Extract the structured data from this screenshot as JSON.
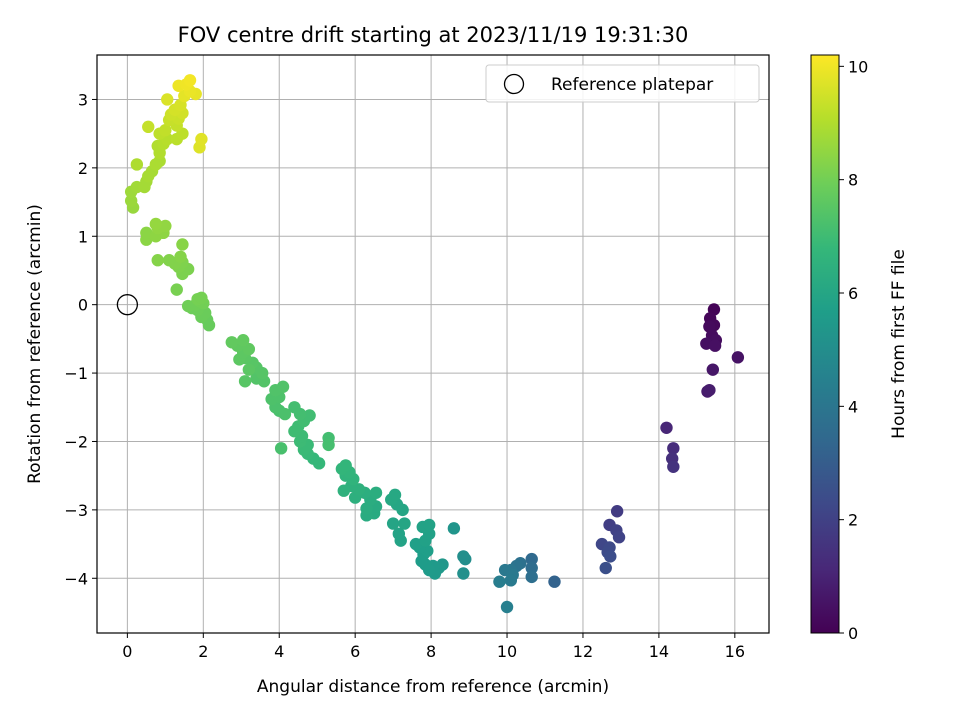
{
  "chart_data": {
    "type": "scatter",
    "title": "FOV centre drift starting at 2023/11/19 19:31:30",
    "xlabel": "Angular distance from reference (arcmin)",
    "ylabel": "Rotation from reference (arcmin)",
    "xlim": [
      -0.8,
      16.9
    ],
    "ylim": [
      -4.8,
      3.65
    ],
    "xticks": [
      0,
      2,
      4,
      6,
      8,
      10,
      12,
      14,
      16
    ],
    "yticks": [
      -4,
      -3,
      -2,
      -1,
      0,
      1,
      2,
      3
    ],
    "grid": true,
    "legend": {
      "position": "top-right",
      "entries": [
        "Reference platepar"
      ]
    },
    "reference_point": {
      "x": 0,
      "y": 0
    },
    "colorbar": {
      "label": "Hours from first FF file",
      "min": 0,
      "max": 10.2,
      "ticks": [
        0,
        2,
        4,
        6,
        8,
        10
      ],
      "colormap": "viridis"
    },
    "colormap_stops": [
      "#440154",
      "#482878",
      "#3e4989",
      "#31688e",
      "#26828e",
      "#1f9e89",
      "#35b779",
      "#6ece58",
      "#b5de2b",
      "#fde725"
    ],
    "points": [
      {
        "x": 15.45,
        "y": -0.07,
        "h": 0.1
      },
      {
        "x": 15.35,
        "y": -0.2,
        "h": 0.15
      },
      {
        "x": 15.45,
        "y": -0.3,
        "h": 0.2
      },
      {
        "x": 15.33,
        "y": -0.32,
        "h": 0.25
      },
      {
        "x": 15.4,
        "y": -0.45,
        "h": 0.3
      },
      {
        "x": 15.5,
        "y": -0.52,
        "h": 0.35
      },
      {
        "x": 15.25,
        "y": -0.57,
        "h": 0.4
      },
      {
        "x": 15.48,
        "y": -0.6,
        "h": 0.45
      },
      {
        "x": 16.08,
        "y": -0.77,
        "h": 0.5
      },
      {
        "x": 15.42,
        "y": -0.95,
        "h": 0.6
      },
      {
        "x": 15.28,
        "y": -1.27,
        "h": 0.75
      },
      {
        "x": 15.33,
        "y": -1.25,
        "h": 0.8
      },
      {
        "x": 14.2,
        "y": -1.8,
        "h": 1.1
      },
      {
        "x": 14.38,
        "y": -2.1,
        "h": 1.3
      },
      {
        "x": 14.35,
        "y": -2.25,
        "h": 1.4
      },
      {
        "x": 14.38,
        "y": -2.37,
        "h": 1.5
      },
      {
        "x": 12.9,
        "y": -3.02,
        "h": 1.8
      },
      {
        "x": 12.7,
        "y": -3.22,
        "h": 1.9
      },
      {
        "x": 12.88,
        "y": -3.3,
        "h": 2.0
      },
      {
        "x": 12.95,
        "y": -3.4,
        "h": 2.05
      },
      {
        "x": 12.5,
        "y": -3.5,
        "h": 2.2
      },
      {
        "x": 12.7,
        "y": -3.55,
        "h": 2.3
      },
      {
        "x": 12.65,
        "y": -3.62,
        "h": 2.35
      },
      {
        "x": 12.72,
        "y": -3.68,
        "h": 2.4
      },
      {
        "x": 12.6,
        "y": -3.85,
        "h": 2.5
      },
      {
        "x": 11.25,
        "y": -4.05,
        "h": 3.2
      },
      {
        "x": 10.65,
        "y": -3.72,
        "h": 3.5
      },
      {
        "x": 10.65,
        "y": -3.85,
        "h": 3.6
      },
      {
        "x": 10.65,
        "y": -3.98,
        "h": 3.7
      },
      {
        "x": 10.35,
        "y": -3.78,
        "h": 3.8
      },
      {
        "x": 10.25,
        "y": -3.82,
        "h": 3.9
      },
      {
        "x": 10.1,
        "y": -3.88,
        "h": 4.0
      },
      {
        "x": 9.95,
        "y": -3.88,
        "h": 4.1
      },
      {
        "x": 10.15,
        "y": -3.95,
        "h": 4.15
      },
      {
        "x": 10.1,
        "y": -4.03,
        "h": 4.2
      },
      {
        "x": 9.8,
        "y": -4.05,
        "h": 4.3
      },
      {
        "x": 10.0,
        "y": -4.42,
        "h": 4.4
      },
      {
        "x": 8.9,
        "y": -3.72,
        "h": 5.0
      },
      {
        "x": 8.85,
        "y": -3.68,
        "h": 5.05
      },
      {
        "x": 8.85,
        "y": -3.93,
        "h": 5.1
      },
      {
        "x": 8.6,
        "y": -3.27,
        "h": 5.3
      },
      {
        "x": 8.3,
        "y": -3.8,
        "h": 5.4
      },
      {
        "x": 8.2,
        "y": -3.85,
        "h": 5.45
      },
      {
        "x": 8.1,
        "y": -3.93,
        "h": 5.5
      },
      {
        "x": 8.05,
        "y": -3.82,
        "h": 5.5
      },
      {
        "x": 7.95,
        "y": -3.88,
        "h": 5.55
      },
      {
        "x": 7.85,
        "y": -3.8,
        "h": 5.6
      },
      {
        "x": 7.75,
        "y": -3.75,
        "h": 5.6
      },
      {
        "x": 7.8,
        "y": -3.65,
        "h": 5.65
      },
      {
        "x": 7.9,
        "y": -3.6,
        "h": 5.7
      },
      {
        "x": 7.7,
        "y": -3.55,
        "h": 5.7
      },
      {
        "x": 7.6,
        "y": -3.5,
        "h": 5.75
      },
      {
        "x": 7.85,
        "y": -3.45,
        "h": 5.8
      },
      {
        "x": 7.95,
        "y": -3.35,
        "h": 5.8
      },
      {
        "x": 7.78,
        "y": -3.25,
        "h": 5.85
      },
      {
        "x": 7.95,
        "y": -3.22,
        "h": 5.85
      },
      {
        "x": 7.2,
        "y": -3.45,
        "h": 5.9
      },
      {
        "x": 7.15,
        "y": -3.35,
        "h": 5.9
      },
      {
        "x": 7.0,
        "y": -3.2,
        "h": 5.95
      },
      {
        "x": 7.3,
        "y": -3.2,
        "h": 6.0
      },
      {
        "x": 7.25,
        "y": -3.0,
        "h": 6.0
      },
      {
        "x": 7.1,
        "y": -2.92,
        "h": 6.05
      },
      {
        "x": 6.95,
        "y": -2.85,
        "h": 6.1
      },
      {
        "x": 7.05,
        "y": -2.78,
        "h": 6.1
      },
      {
        "x": 6.5,
        "y": -3.05,
        "h": 6.2
      },
      {
        "x": 6.55,
        "y": -2.95,
        "h": 6.2
      },
      {
        "x": 6.3,
        "y": -3.08,
        "h": 6.25
      },
      {
        "x": 6.3,
        "y": -2.98,
        "h": 6.3
      },
      {
        "x": 6.4,
        "y": -2.85,
        "h": 6.3
      },
      {
        "x": 6.55,
        "y": -2.75,
        "h": 6.35
      },
      {
        "x": 6.25,
        "y": -2.75,
        "h": 6.4
      },
      {
        "x": 6.0,
        "y": -2.82,
        "h": 6.45
      },
      {
        "x": 6.1,
        "y": -2.7,
        "h": 6.5
      },
      {
        "x": 5.9,
        "y": -2.65,
        "h": 6.5
      },
      {
        "x": 5.7,
        "y": -2.72,
        "h": 6.55
      },
      {
        "x": 5.95,
        "y": -2.55,
        "h": 6.6
      },
      {
        "x": 5.75,
        "y": -2.5,
        "h": 6.6
      },
      {
        "x": 5.85,
        "y": -2.45,
        "h": 6.65
      },
      {
        "x": 5.65,
        "y": -2.4,
        "h": 6.7
      },
      {
        "x": 5.75,
        "y": -2.35,
        "h": 6.7
      },
      {
        "x": 5.05,
        "y": -2.32,
        "h": 6.8
      },
      {
        "x": 4.9,
        "y": -2.25,
        "h": 6.8
      },
      {
        "x": 4.75,
        "y": -2.18,
        "h": 6.85
      },
      {
        "x": 4.65,
        "y": -2.12,
        "h": 6.9
      },
      {
        "x": 4.75,
        "y": -2.05,
        "h": 6.9
      },
      {
        "x": 4.55,
        "y": -2.0,
        "h": 6.95
      },
      {
        "x": 4.6,
        "y": -1.92,
        "h": 6.95
      },
      {
        "x": 4.4,
        "y": -1.85,
        "h": 7.0
      },
      {
        "x": 4.5,
        "y": -1.78,
        "h": 7.0
      },
      {
        "x": 4.65,
        "y": -1.7,
        "h": 7.05
      },
      {
        "x": 4.8,
        "y": -1.62,
        "h": 7.05
      },
      {
        "x": 4.55,
        "y": -1.6,
        "h": 7.1
      },
      {
        "x": 4.4,
        "y": -1.5,
        "h": 7.1
      },
      {
        "x": 5.3,
        "y": -1.95,
        "h": 7.1
      },
      {
        "x": 5.3,
        "y": -2.05,
        "h": 7.15
      },
      {
        "x": 4.05,
        "y": -2.1,
        "h": 7.2
      },
      {
        "x": 4.0,
        "y": -1.55,
        "h": 7.2
      },
      {
        "x": 4.15,
        "y": -1.6,
        "h": 7.25
      },
      {
        "x": 3.9,
        "y": -1.5,
        "h": 7.25
      },
      {
        "x": 3.8,
        "y": -1.38,
        "h": 7.3
      },
      {
        "x": 4.0,
        "y": -1.35,
        "h": 7.3
      },
      {
        "x": 3.9,
        "y": -1.25,
        "h": 7.35
      },
      {
        "x": 4.1,
        "y": -1.2,
        "h": 7.35
      },
      {
        "x": 3.6,
        "y": -1.12,
        "h": 7.4
      },
      {
        "x": 3.4,
        "y": -1.08,
        "h": 7.4
      },
      {
        "x": 3.55,
        "y": -1.0,
        "h": 7.45
      },
      {
        "x": 3.4,
        "y": -0.92,
        "h": 7.45
      },
      {
        "x": 3.3,
        "y": -0.85,
        "h": 7.5
      },
      {
        "x": 3.1,
        "y": -1.12,
        "h": 7.5
      },
      {
        "x": 3.2,
        "y": -0.95,
        "h": 7.55
      },
      {
        "x": 3.1,
        "y": -0.78,
        "h": 7.55
      },
      {
        "x": 2.95,
        "y": -0.8,
        "h": 7.6
      },
      {
        "x": 3.05,
        "y": -0.7,
        "h": 7.6
      },
      {
        "x": 3.2,
        "y": -0.65,
        "h": 7.65
      },
      {
        "x": 2.9,
        "y": -0.6,
        "h": 7.65
      },
      {
        "x": 2.75,
        "y": -0.55,
        "h": 7.7
      },
      {
        "x": 3.05,
        "y": -0.52,
        "h": 7.7
      },
      {
        "x": 2.15,
        "y": -0.3,
        "h": 7.8
      },
      {
        "x": 2.1,
        "y": -0.22,
        "h": 7.8
      },
      {
        "x": 1.95,
        "y": -0.18,
        "h": 7.85
      },
      {
        "x": 2.05,
        "y": -0.12,
        "h": 7.85
      },
      {
        "x": 1.85,
        "y": -0.08,
        "h": 7.9
      },
      {
        "x": 1.7,
        "y": -0.05,
        "h": 7.9
      },
      {
        "x": 1.6,
        "y": -0.02,
        "h": 7.95
      },
      {
        "x": 1.8,
        "y": 0.0,
        "h": 7.95
      },
      {
        "x": 2.0,
        "y": 0.02,
        "h": 8.0
      },
      {
        "x": 1.9,
        "y": 0.05,
        "h": 8.0
      },
      {
        "x": 1.85,
        "y": 0.08,
        "h": 8.05
      },
      {
        "x": 1.95,
        "y": 0.1,
        "h": 8.05
      },
      {
        "x": 1.3,
        "y": 0.22,
        "h": 8.1
      },
      {
        "x": 1.45,
        "y": 0.45,
        "h": 8.15
      },
      {
        "x": 1.6,
        "y": 0.52,
        "h": 8.15
      },
      {
        "x": 1.35,
        "y": 0.55,
        "h": 8.2
      },
      {
        "x": 1.45,
        "y": 0.62,
        "h": 8.2
      },
      {
        "x": 1.25,
        "y": 0.6,
        "h": 8.25
      },
      {
        "x": 1.1,
        "y": 0.65,
        "h": 8.25
      },
      {
        "x": 1.4,
        "y": 0.7,
        "h": 8.3
      },
      {
        "x": 0.8,
        "y": 0.65,
        "h": 8.3
      },
      {
        "x": 1.45,
        "y": 0.88,
        "h": 8.35
      },
      {
        "x": 0.5,
        "y": 0.95,
        "h": 8.4
      },
      {
        "x": 0.5,
        "y": 1.05,
        "h": 8.4
      },
      {
        "x": 0.75,
        "y": 1.0,
        "h": 8.45
      },
      {
        "x": 0.95,
        "y": 1.05,
        "h": 8.45
      },
      {
        "x": 0.8,
        "y": 1.12,
        "h": 8.5
      },
      {
        "x": 1.0,
        "y": 1.15,
        "h": 8.5
      },
      {
        "x": 0.75,
        "y": 1.18,
        "h": 8.55
      },
      {
        "x": 0.15,
        "y": 1.42,
        "h": 8.6
      },
      {
        "x": 0.1,
        "y": 1.52,
        "h": 8.65
      },
      {
        "x": 0.1,
        "y": 1.65,
        "h": 8.7
      },
      {
        "x": 0.25,
        "y": 1.72,
        "h": 8.75
      },
      {
        "x": 0.45,
        "y": 1.72,
        "h": 8.8
      },
      {
        "x": 0.5,
        "y": 1.8,
        "h": 8.8
      },
      {
        "x": 0.55,
        "y": 1.88,
        "h": 8.85
      },
      {
        "x": 0.65,
        "y": 1.95,
        "h": 8.85
      },
      {
        "x": 0.75,
        "y": 2.05,
        "h": 8.9
      },
      {
        "x": 0.85,
        "y": 2.1,
        "h": 8.9
      },
      {
        "x": 0.25,
        "y": 2.05,
        "h": 8.95
      },
      {
        "x": 0.85,
        "y": 2.22,
        "h": 9.0
      },
      {
        "x": 0.8,
        "y": 2.32,
        "h": 9.0
      },
      {
        "x": 0.95,
        "y": 2.35,
        "h": 9.05
      },
      {
        "x": 1.05,
        "y": 2.42,
        "h": 9.1
      },
      {
        "x": 1.3,
        "y": 2.42,
        "h": 9.15
      },
      {
        "x": 1.45,
        "y": 2.5,
        "h": 9.2
      },
      {
        "x": 0.85,
        "y": 2.5,
        "h": 9.2
      },
      {
        "x": 1.0,
        "y": 2.55,
        "h": 9.25
      },
      {
        "x": 0.55,
        "y": 2.6,
        "h": 9.3
      },
      {
        "x": 1.3,
        "y": 2.62,
        "h": 9.3
      },
      {
        "x": 1.1,
        "y": 2.7,
        "h": 9.35
      },
      {
        "x": 1.35,
        "y": 2.72,
        "h": 9.4
      },
      {
        "x": 1.15,
        "y": 2.78,
        "h": 9.45
      },
      {
        "x": 1.45,
        "y": 2.8,
        "h": 9.5
      },
      {
        "x": 1.25,
        "y": 2.85,
        "h": 9.55
      },
      {
        "x": 1.4,
        "y": 2.92,
        "h": 9.6
      },
      {
        "x": 1.05,
        "y": 3.0,
        "h": 9.65
      },
      {
        "x": 1.9,
        "y": 2.3,
        "h": 9.7
      },
      {
        "x": 1.95,
        "y": 2.42,
        "h": 9.75
      },
      {
        "x": 1.5,
        "y": 3.05,
        "h": 9.8
      },
      {
        "x": 1.8,
        "y": 3.08,
        "h": 9.85
      },
      {
        "x": 1.65,
        "y": 3.12,
        "h": 9.9
      },
      {
        "x": 1.35,
        "y": 3.2,
        "h": 9.95
      },
      {
        "x": 1.55,
        "y": 3.22,
        "h": 10.0
      },
      {
        "x": 1.65,
        "y": 3.28,
        "h": 10.05
      }
    ]
  }
}
